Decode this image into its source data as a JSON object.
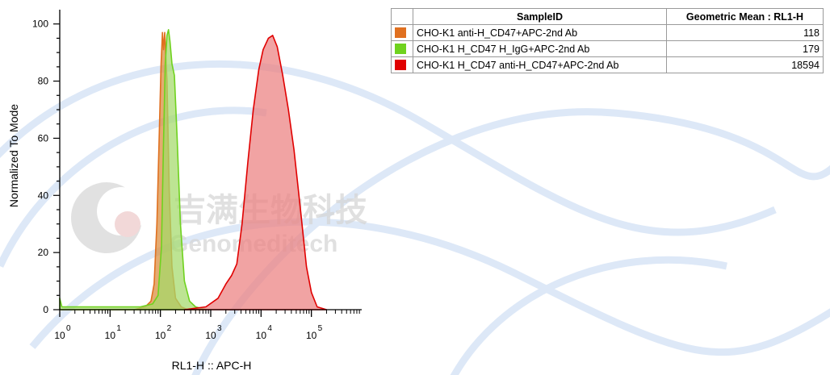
{
  "chart_data": {
    "type": "area",
    "xlabel": "RL1-H :: APC-H",
    "ylabel": "Normalized To Mode",
    "x_scale": "log",
    "xlim": [
      1,
      1000000
    ],
    "ylim": [
      0,
      105
    ],
    "x_ticks": [
      {
        "base": "10",
        "exp": "0",
        "value": 1
      },
      {
        "base": "10",
        "exp": "1",
        "value": 10
      },
      {
        "base": "10",
        "exp": "2",
        "value": 100
      },
      {
        "base": "10",
        "exp": "3",
        "value": 1000
      },
      {
        "base": "10",
        "exp": "4",
        "value": 10000
      },
      {
        "base": "10",
        "exp": "5",
        "value": 100000
      }
    ],
    "y_ticks": [
      "0",
      "20",
      "40",
      "60",
      "80",
      "100"
    ],
    "series": [
      {
        "name": "CHO-K1 anti-H_CD47+APC-2nd Ab",
        "fill": "#d98a3a",
        "stroke": "#e07020",
        "points": [
          [
            1,
            0
          ],
          [
            30,
            0
          ],
          [
            50,
            1
          ],
          [
            65,
            3
          ],
          [
            75,
            9
          ],
          [
            85,
            30
          ],
          [
            95,
            62
          ],
          [
            103,
            86
          ],
          [
            110,
            97
          ],
          [
            115,
            91
          ],
          [
            122,
            97
          ],
          [
            135,
            80
          ],
          [
            150,
            42
          ],
          [
            170,
            15
          ],
          [
            200,
            4
          ],
          [
            260,
            1
          ],
          [
            350,
            0
          ]
        ]
      },
      {
        "name": "CHO-K1 H_CD47 H_IgG+APC-2nd Ab",
        "fill": "#a4d96a",
        "stroke": "#6fd21e",
        "points": [
          [
            1,
            4
          ],
          [
            1.1,
            1
          ],
          [
            40,
            1
          ],
          [
            70,
            2
          ],
          [
            90,
            5
          ],
          [
            105,
            22
          ],
          [
            115,
            58
          ],
          [
            125,
            86
          ],
          [
            135,
            96
          ],
          [
            145,
            98
          ],
          [
            155,
            94
          ],
          [
            170,
            86
          ],
          [
            190,
            82
          ],
          [
            215,
            60
          ],
          [
            250,
            30
          ],
          [
            300,
            10
          ],
          [
            380,
            3
          ],
          [
            500,
            1
          ],
          [
            800,
            0
          ]
        ]
      },
      {
        "name": "CHO-K1 H_CD47 anti-H_CD47+APC-2nd Ab",
        "fill": "#eb8080",
        "stroke": "#e00000",
        "points": [
          [
            300,
            0
          ],
          [
            800,
            1
          ],
          [
            1400,
            4
          ],
          [
            2000,
            9
          ],
          [
            2600,
            12
          ],
          [
            3300,
            16
          ],
          [
            4200,
            30
          ],
          [
            5500,
            52
          ],
          [
            7000,
            70
          ],
          [
            9000,
            84
          ],
          [
            11000,
            91
          ],
          [
            14000,
            95
          ],
          [
            17000,
            96
          ],
          [
            21000,
            92
          ],
          [
            27000,
            82
          ],
          [
            35000,
            70
          ],
          [
            45000,
            56
          ],
          [
            60000,
            36
          ],
          [
            80000,
            15
          ],
          [
            100000,
            6
          ],
          [
            130000,
            1
          ],
          [
            200000,
            0
          ]
        ]
      }
    ],
    "legend": {
      "headers": [
        "SampleID",
        "Geometric Mean : RL1-H"
      ],
      "rows": [
        {
          "color": "#e07020",
          "sample": "CHO-K1 anti-H_CD47+APC-2nd Ab",
          "value": "118"
        },
        {
          "color": "#6fd21e",
          "sample": "CHO-K1 H_CD47 H_IgG+APC-2nd Ab",
          "value": "179"
        },
        {
          "color": "#e00000",
          "sample": "CHO-K1 H_CD47 anti-H_CD47+APC-2nd Ab",
          "value": "18594"
        }
      ]
    }
  },
  "watermark": {
    "chinese": "吉满生物科技",
    "english": "Genomeditech"
  }
}
